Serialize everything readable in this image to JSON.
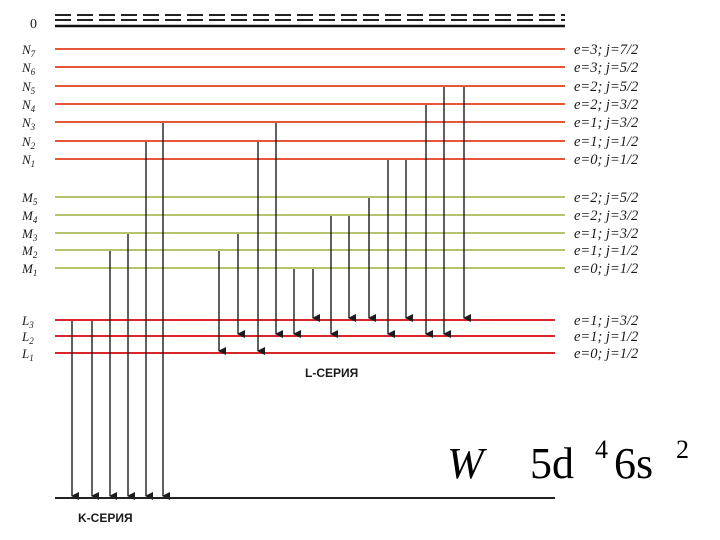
{
  "diagram": {
    "top_label": "0",
    "levels": {
      "N": [
        {
          "name": "N7",
          "sym": "N",
          "sub": "7",
          "qn": "e=3; j=7/2"
        },
        {
          "name": "N6",
          "sym": "N",
          "sub": "6",
          "qn": "e=3; j=5/2"
        },
        {
          "name": "N5",
          "sym": "N",
          "sub": "5",
          "qn": "e=2; j=5/2"
        },
        {
          "name": "N4",
          "sym": "N",
          "sub": "4",
          "qn": "e=2; j=3/2"
        },
        {
          "name": "N3",
          "sym": "N",
          "sub": "3",
          "qn": "e=1; j=3/2"
        },
        {
          "name": "N2",
          "sym": "N",
          "sub": "2",
          "qn": "e=1; j=1/2"
        },
        {
          "name": "N1",
          "sym": "N",
          "sub": "1",
          "qn": "e=0; j=1/2"
        }
      ],
      "M": [
        {
          "name": "M5",
          "sym": "M",
          "sub": "5",
          "qn": "e=2; j=5/2"
        },
        {
          "name": "M4",
          "sym": "M",
          "sub": "4",
          "qn": "e=2; j=3/2"
        },
        {
          "name": "M3",
          "sym": "M",
          "sub": "3",
          "qn": "e=1; j=3/2"
        },
        {
          "name": "M2",
          "sym": "M",
          "sub": "2",
          "qn": "e=1; j=1/2"
        },
        {
          "name": "M1",
          "sym": "M",
          "sub": "1",
          "qn": "e=0; j=1/2"
        }
      ],
      "L": [
        {
          "name": "L3",
          "sym": "L",
          "sub": "3",
          "qn": "e=1; j=3/2"
        },
        {
          "name": "L2",
          "sym": "L",
          "sub": "2",
          "qn": "e=1; j=1/2"
        },
        {
          "name": "L1",
          "sym": "L",
          "sub": "1",
          "qn": "e=0; j=1/2"
        }
      ]
    },
    "series": {
      "L_series": "L-СЕРИЯ",
      "K_series": "K-СЕРИЯ"
    },
    "colors": {
      "N": "#e8563a",
      "M": "#9fae3c",
      "L": "#d8262a",
      "K": "#222222",
      "arrow": "#1c1c1c"
    },
    "formula": {
      "element": "W",
      "config_a": "5d",
      "config_a_exp": "4",
      "config_b": "6s",
      "config_b_exp": "2"
    }
  }
}
